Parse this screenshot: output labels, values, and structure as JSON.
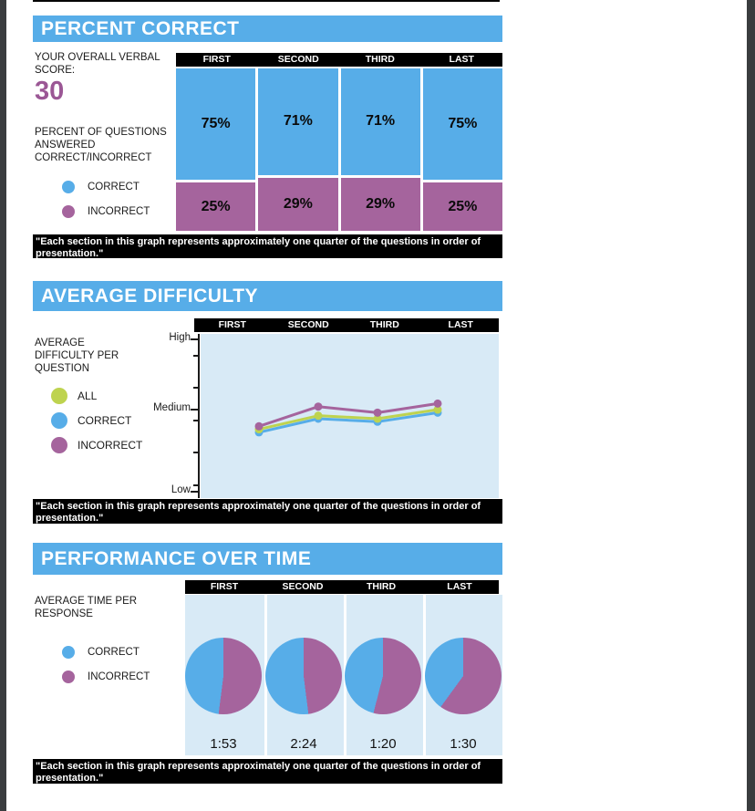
{
  "colors": {
    "blue": "#57ade8",
    "purple": "#a5649d",
    "green": "#bed34f",
    "plot_bg": "#d8eaf6",
    "score_purple": "#9b5795"
  },
  "caption": {
    "text": "\"Each section in this graph represents approximately one quarter of the questions in order of presentation.\""
  },
  "sections": {
    "percent_correct": {
      "title": "PERCENT CORRECT",
      "score_label": "YOUR OVERALL VERBAL SCORE:",
      "score_value": "30",
      "description": "PERCENT OF QUESTIONS ANSWERED CORRECT/INCORRECT",
      "legend": [
        {
          "label": "CORRECT",
          "color_key": "blue"
        },
        {
          "label": "INCORRECT",
          "color_key": "purple"
        }
      ]
    },
    "average_difficulty": {
      "title": "AVERAGE DIFFICULTY",
      "description": "AVERAGE DIFFICULTY PER QUESTION",
      "legend": [
        {
          "label": "ALL",
          "color_key": "green"
        },
        {
          "label": "CORRECT",
          "color_key": "blue"
        },
        {
          "label": "INCORRECT",
          "color_key": "purple"
        }
      ]
    },
    "performance_over_time": {
      "title": "PERFORMANCE OVER TIME",
      "description": "AVERAGE TIME PER RESPONSE",
      "legend": [
        {
          "label": "CORRECT",
          "color_key": "blue"
        },
        {
          "label": "INCORRECT",
          "color_key": "purple"
        }
      ]
    }
  },
  "chart_data": [
    {
      "type": "bar",
      "stacked": true,
      "title": "PERCENT CORRECT",
      "categories": [
        "FIRST",
        "SECOND",
        "THIRD",
        "LAST"
      ],
      "series": [
        {
          "name": "CORRECT",
          "color_key": "blue",
          "values": [
            75,
            71,
            71,
            75
          ]
        },
        {
          "name": "INCORRECT",
          "color_key": "purple",
          "values": [
            25,
            29,
            29,
            25
          ]
        }
      ],
      "value_format": "percent",
      "ylim": [
        0,
        100
      ],
      "legend_position": "left"
    },
    {
      "type": "line",
      "title": "AVERAGE DIFFICULTY",
      "categories": [
        "FIRST",
        "SECOND",
        "THIRD",
        "LAST"
      ],
      "y_axis": {
        "labels": [
          "High",
          "Medium",
          "Low"
        ],
        "range": [
          0,
          1
        ]
      },
      "series": [
        {
          "name": "ALL",
          "color_key": "green",
          "values": [
            0.4,
            0.49,
            0.47,
            0.53
          ]
        },
        {
          "name": "CORRECT",
          "color_key": "blue",
          "values": [
            0.38,
            0.47,
            0.45,
            0.51
          ]
        },
        {
          "name": "INCORRECT",
          "color_key": "purple",
          "values": [
            0.42,
            0.55,
            0.51,
            0.57
          ]
        }
      ],
      "grid": false,
      "legend_position": "left"
    },
    {
      "type": "pie",
      "title": "PERFORMANCE OVER TIME",
      "categories": [
        "FIRST",
        "SECOND",
        "THIRD",
        "LAST"
      ],
      "pies": [
        {
          "time": "1:53",
          "incorrect_pct": 52,
          "correct_pct": 48
        },
        {
          "time": "2:24",
          "incorrect_pct": 48,
          "correct_pct": 52
        },
        {
          "time": "1:20",
          "incorrect_pct": 54,
          "correct_pct": 46
        },
        {
          "time": "1:30",
          "incorrect_pct": 60,
          "correct_pct": 40
        }
      ],
      "legend_position": "left"
    }
  ]
}
